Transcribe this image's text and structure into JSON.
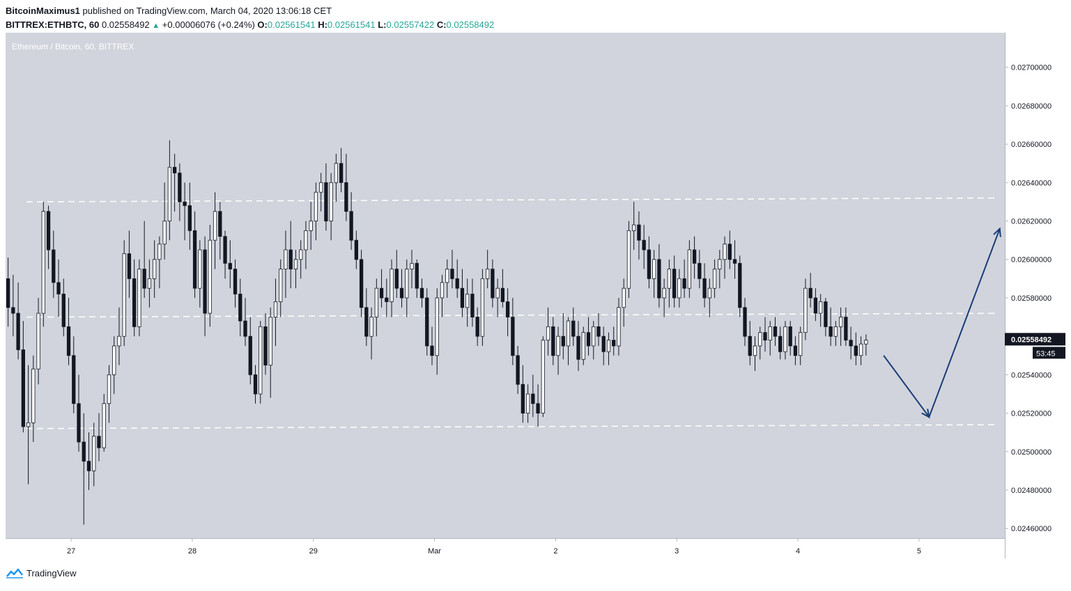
{
  "header": {
    "author": "BitcoinMaximus1",
    "published_text": " published on TradingView.com, March 04, 2020 13:06:18 CET",
    "symbol": "BITTREX:ETHBTC, 60",
    "last_price": "0.02558492",
    "change": "+0.00006076 (+0.24%)",
    "o_label": "O:",
    "o_value": "0.02561541",
    "h_label": "H:",
    "h_value": "0.02561541",
    "l_label": "L:",
    "l_value": "0.02557422",
    "c_label": "C:",
    "c_value": "0.02558492"
  },
  "footer": {
    "brand": "TradingView"
  },
  "colors": {
    "chart_bg": "#d1d4dc",
    "up_body": "#ffffff",
    "down_body": "#131722",
    "wick": "#131722",
    "level_line": "#ffffff",
    "arrow": "#1a3c78",
    "price_label_bg": "#131722",
    "price_label_text": "#ffffff"
  },
  "chart_data": {
    "type": "candlestick",
    "title": "Ethereum / Bitcoin, 60, BITTREX",
    "ylim": [
      0.02455,
      0.02718
    ],
    "y_ticks": [
      "0.02460000",
      "0.02480000",
      "0.02500000",
      "0.02520000",
      "0.02540000",
      "0.02560000",
      "0.02580000",
      "0.02600000",
      "0.02620000",
      "0.02640000",
      "0.02660000",
      "0.02680000",
      "0.02700000"
    ],
    "x_ticks": [
      "27",
      "28",
      "29",
      "Mar",
      "2",
      "3",
      "4",
      "5"
    ],
    "x_tick_hours": [
      13,
      37,
      61,
      85,
      109,
      133,
      157,
      181
    ],
    "x_range_hours": [
      0,
      198
    ],
    "current_price": "0.02558492",
    "countdown": "53:45",
    "ohlc_hourly": [
      [
        0.0259,
        0.02601,
        0.02565,
        0.02575
      ],
      [
        0.02575,
        0.02592,
        0.0256,
        0.02572
      ],
      [
        0.02572,
        0.02588,
        0.02548,
        0.02553
      ],
      [
        0.02553,
        0.02568,
        0.0251,
        0.02513
      ],
      [
        0.02513,
        0.02545,
        0.02483,
        0.02515
      ],
      [
        0.02515,
        0.0255,
        0.02505,
        0.02543
      ],
      [
        0.02543,
        0.0258,
        0.02535,
        0.02572
      ],
      [
        0.02572,
        0.0263,
        0.02565,
        0.02625
      ],
      [
        0.02625,
        0.02628,
        0.02595,
        0.02605
      ],
      [
        0.02605,
        0.02615,
        0.0258,
        0.02588
      ],
      [
        0.02588,
        0.026,
        0.0257,
        0.02582
      ],
      [
        0.02582,
        0.0259,
        0.0256,
        0.02565
      ],
      [
        0.02565,
        0.0258,
        0.02545,
        0.0255
      ],
      [
        0.0255,
        0.0256,
        0.0252,
        0.02525
      ],
      [
        0.02525,
        0.0254,
        0.025,
        0.02505
      ],
      [
        0.02505,
        0.0252,
        0.02462,
        0.02495
      ],
      [
        0.02495,
        0.0251,
        0.0248,
        0.0249
      ],
      [
        0.0249,
        0.02515,
        0.02482,
        0.02508
      ],
      [
        0.02508,
        0.0252,
        0.02495,
        0.02502
      ],
      [
        0.02502,
        0.0253,
        0.025,
        0.02525
      ],
      [
        0.02525,
        0.02545,
        0.02515,
        0.0254
      ],
      [
        0.0254,
        0.0256,
        0.0253,
        0.02555
      ],
      [
        0.02555,
        0.02575,
        0.02545,
        0.0256
      ],
      [
        0.0256,
        0.0261,
        0.02555,
        0.02603
      ],
      [
        0.02603,
        0.02615,
        0.0258,
        0.0259
      ],
      [
        0.0259,
        0.026,
        0.0256,
        0.02565
      ],
      [
        0.02565,
        0.026,
        0.0256,
        0.02595
      ],
      [
        0.02595,
        0.0262,
        0.0258,
        0.02585
      ],
      [
        0.02585,
        0.026,
        0.02575,
        0.0259
      ],
      [
        0.0259,
        0.0261,
        0.0258,
        0.026
      ],
      [
        0.026,
        0.02612,
        0.02585,
        0.02608
      ],
      [
        0.02608,
        0.0264,
        0.026,
        0.0262
      ],
      [
        0.0262,
        0.02662,
        0.0261,
        0.02648
      ],
      [
        0.02648,
        0.02655,
        0.02625,
        0.02645
      ],
      [
        0.02645,
        0.0265,
        0.0262,
        0.0263
      ],
      [
        0.0263,
        0.0264,
        0.0261,
        0.02628
      ],
      [
        0.02628,
        0.0264,
        0.02605,
        0.02615
      ],
      [
        0.02615,
        0.02625,
        0.0258,
        0.02585
      ],
      [
        0.02585,
        0.0261,
        0.02575,
        0.02605
      ],
      [
        0.02605,
        0.02612,
        0.0256,
        0.02572
      ],
      [
        0.02572,
        0.02618,
        0.02565,
        0.0261
      ],
      [
        0.0261,
        0.02635,
        0.02595,
        0.02625
      ],
      [
        0.02625,
        0.0263,
        0.026,
        0.02612
      ],
      [
        0.02612,
        0.02615,
        0.0259,
        0.02598
      ],
      [
        0.02598,
        0.0261,
        0.02585,
        0.02595
      ],
      [
        0.02595,
        0.026,
        0.02575,
        0.02582
      ],
      [
        0.02582,
        0.0259,
        0.0256,
        0.02568
      ],
      [
        0.02568,
        0.0258,
        0.02555,
        0.0256
      ],
      [
        0.0256,
        0.0257,
        0.02535,
        0.0254
      ],
      [
        0.0254,
        0.02545,
        0.02525,
        0.0253
      ],
      [
        0.0253,
        0.02568,
        0.02525,
        0.02565
      ],
      [
        0.02565,
        0.02572,
        0.0254,
        0.02545
      ],
      [
        0.02545,
        0.02575,
        0.02528,
        0.0257
      ],
      [
        0.0257,
        0.0259,
        0.02555,
        0.02578
      ],
      [
        0.02578,
        0.026,
        0.0257,
        0.02595
      ],
      [
        0.02595,
        0.02615,
        0.0258,
        0.02605
      ],
      [
        0.02605,
        0.0262,
        0.02585,
        0.02595
      ],
      [
        0.02595,
        0.02605,
        0.02585,
        0.026
      ],
      [
        0.026,
        0.0261,
        0.0259,
        0.02605
      ],
      [
        0.02605,
        0.0262,
        0.02595,
        0.02615
      ],
      [
        0.02615,
        0.0263,
        0.02605,
        0.0262
      ],
      [
        0.0262,
        0.0264,
        0.0261,
        0.02635
      ],
      [
        0.02635,
        0.02645,
        0.02625,
        0.0264
      ],
      [
        0.0264,
        0.0265,
        0.02615,
        0.0262
      ],
      [
        0.0262,
        0.02645,
        0.0261,
        0.0264
      ],
      [
        0.0264,
        0.02655,
        0.0263,
        0.0265
      ],
      [
        0.0265,
        0.02658,
        0.02635,
        0.0264
      ],
      [
        0.0264,
        0.02655,
        0.0262,
        0.02625
      ],
      [
        0.02625,
        0.02635,
        0.02605,
        0.0261
      ],
      [
        0.0261,
        0.02615,
        0.02595,
        0.026
      ],
      [
        0.026,
        0.02605,
        0.0257,
        0.02575
      ],
      [
        0.02575,
        0.02585,
        0.02555,
        0.0256
      ],
      [
        0.0256,
        0.02575,
        0.02548,
        0.0257
      ],
      [
        0.0257,
        0.0259,
        0.0256,
        0.02585
      ],
      [
        0.02585,
        0.02595,
        0.02575,
        0.0258
      ],
      [
        0.0258,
        0.0259,
        0.0257,
        0.02578
      ],
      [
        0.02578,
        0.026,
        0.0257,
        0.02595
      ],
      [
        0.02595,
        0.02605,
        0.0258,
        0.02585
      ],
      [
        0.02585,
        0.02595,
        0.02575,
        0.0258
      ],
      [
        0.0258,
        0.026,
        0.0257,
        0.02595
      ],
      [
        0.02595,
        0.02605,
        0.02585,
        0.02598
      ],
      [
        0.02598,
        0.026,
        0.0258,
        0.02585
      ],
      [
        0.02585,
        0.0259,
        0.02575,
        0.0258
      ],
      [
        0.0258,
        0.02585,
        0.0255,
        0.02555
      ],
      [
        0.02555,
        0.02565,
        0.02545,
        0.0255
      ],
      [
        0.0255,
        0.02585,
        0.0254,
        0.0258
      ],
      [
        0.0258,
        0.02592,
        0.0257,
        0.02588
      ],
      [
        0.02588,
        0.026,
        0.0258,
        0.02595
      ],
      [
        0.02595,
        0.02605,
        0.02585,
        0.0259
      ],
      [
        0.0259,
        0.026,
        0.0258,
        0.02585
      ],
      [
        0.02585,
        0.02595,
        0.0257,
        0.02575
      ],
      [
        0.02575,
        0.0259,
        0.02565,
        0.02582
      ],
      [
        0.02582,
        0.0259,
        0.02565,
        0.0257
      ],
      [
        0.0257,
        0.02575,
        0.02555,
        0.0256
      ],
      [
        0.0256,
        0.02595,
        0.02555,
        0.0259
      ],
      [
        0.0259,
        0.02605,
        0.02585,
        0.02595
      ],
      [
        0.02595,
        0.026,
        0.02575,
        0.0258
      ],
      [
        0.0258,
        0.0259,
        0.0257,
        0.02585
      ],
      [
        0.02585,
        0.02595,
        0.02575,
        0.02578
      ],
      [
        0.02578,
        0.02585,
        0.0256,
        0.0257
      ],
      [
        0.0257,
        0.0258,
        0.02545,
        0.0255
      ],
      [
        0.0255,
        0.02555,
        0.0253,
        0.02535
      ],
      [
        0.02535,
        0.02545,
        0.02515,
        0.0252
      ],
      [
        0.0252,
        0.02535,
        0.02515,
        0.0253
      ],
      [
        0.0253,
        0.0254,
        0.02518,
        0.02525
      ],
      [
        0.02525,
        0.02535,
        0.02513,
        0.0252
      ],
      [
        0.0252,
        0.0256,
        0.02518,
        0.02558
      ],
      [
        0.02558,
        0.02575,
        0.0255,
        0.02565
      ],
      [
        0.02565,
        0.0257,
        0.02545,
        0.0255
      ],
      [
        0.0255,
        0.02565,
        0.0254,
        0.0256
      ],
      [
        0.0256,
        0.02572,
        0.02548,
        0.02555
      ],
      [
        0.02555,
        0.0257,
        0.02545,
        0.02568
      ],
      [
        0.02568,
        0.02575,
        0.02555,
        0.0256
      ],
      [
        0.0256,
        0.02568,
        0.02542,
        0.02548
      ],
      [
        0.02548,
        0.02565,
        0.02545,
        0.02562
      ],
      [
        0.02562,
        0.0257,
        0.0255,
        0.02555
      ],
      [
        0.02555,
        0.02568,
        0.02548,
        0.02565
      ],
      [
        0.02565,
        0.02572,
        0.02555,
        0.0256
      ],
      [
        0.0256,
        0.02565,
        0.02545,
        0.02552
      ],
      [
        0.02552,
        0.02562,
        0.02545,
        0.02558
      ],
      [
        0.02558,
        0.02565,
        0.0255,
        0.02555
      ],
      [
        0.02555,
        0.0258,
        0.0255,
        0.02575
      ],
      [
        0.02575,
        0.0259,
        0.02565,
        0.02585
      ],
      [
        0.02585,
        0.0262,
        0.0258,
        0.02615
      ],
      [
        0.02615,
        0.0263,
        0.02605,
        0.02618
      ],
      [
        0.02618,
        0.02625,
        0.026,
        0.0261
      ],
      [
        0.0261,
        0.02618,
        0.02595,
        0.02605
      ],
      [
        0.02605,
        0.02612,
        0.02585,
        0.0259
      ],
      [
        0.0259,
        0.02605,
        0.0258,
        0.026
      ],
      [
        0.026,
        0.02608,
        0.02575,
        0.0258
      ],
      [
        0.0258,
        0.0259,
        0.0257,
        0.02585
      ],
      [
        0.02585,
        0.026,
        0.02575,
        0.02595
      ],
      [
        0.02595,
        0.02602,
        0.02575,
        0.0258
      ],
      [
        0.0258,
        0.02595,
        0.02575,
        0.0259
      ],
      [
        0.0259,
        0.026,
        0.0258,
        0.02585
      ],
      [
        0.02585,
        0.0261,
        0.0258,
        0.02605
      ],
      [
        0.02605,
        0.02612,
        0.0259,
        0.02598
      ],
      [
        0.02598,
        0.02605,
        0.02585,
        0.0259
      ],
      [
        0.0259,
        0.02598,
        0.02575,
        0.0258
      ],
      [
        0.0258,
        0.0259,
        0.0257,
        0.02585
      ],
      [
        0.02585,
        0.026,
        0.0258,
        0.02595
      ],
      [
        0.02595,
        0.02605,
        0.02585,
        0.026
      ],
      [
        0.026,
        0.02612,
        0.0259,
        0.02608
      ],
      [
        0.02608,
        0.02615,
        0.02595,
        0.026
      ],
      [
        0.026,
        0.0261,
        0.0259,
        0.02598
      ],
      [
        0.02598,
        0.02602,
        0.0257,
        0.02575
      ],
      [
        0.02575,
        0.0258,
        0.02555,
        0.0256
      ],
      [
        0.0256,
        0.02568,
        0.02545,
        0.0255
      ],
      [
        0.0255,
        0.0256,
        0.02542,
        0.02555
      ],
      [
        0.02555,
        0.02565,
        0.02548,
        0.02562
      ],
      [
        0.02562,
        0.0257,
        0.02552,
        0.02558
      ],
      [
        0.02558,
        0.02568,
        0.0255,
        0.02565
      ],
      [
        0.02565,
        0.0257,
        0.02555,
        0.0256
      ],
      [
        0.0256,
        0.02565,
        0.02548,
        0.02552
      ],
      [
        0.02552,
        0.02568,
        0.02548,
        0.02565
      ],
      [
        0.02565,
        0.02568,
        0.0255,
        0.02555
      ],
      [
        0.02555,
        0.0256,
        0.02545,
        0.0255
      ],
      [
        0.0255,
        0.02565,
        0.02545,
        0.02562
      ],
      [
        0.02562,
        0.0259,
        0.02558,
        0.02585
      ],
      [
        0.02585,
        0.02593,
        0.02575,
        0.0258
      ],
      [
        0.0258,
        0.02585,
        0.02568,
        0.02572
      ],
      [
        0.02572,
        0.02582,
        0.02565,
        0.02578
      ],
      [
        0.02578,
        0.0258,
        0.0256,
        0.02565
      ],
      [
        0.02565,
        0.02575,
        0.02555,
        0.0256
      ],
      [
        0.0256,
        0.02568,
        0.02555,
        0.02565
      ],
      [
        0.02565,
        0.02575,
        0.02555,
        0.0257
      ],
      [
        0.0257,
        0.02575,
        0.02555,
        0.02558
      ],
      [
        0.02558,
        0.02565,
        0.02548,
        0.02555
      ],
      [
        0.02555,
        0.02562,
        0.02545,
        0.0255
      ],
      [
        0.0255,
        0.0256,
        0.02545,
        0.02556
      ],
      [
        0.02556,
        0.02561,
        0.0255,
        0.02558
      ]
    ],
    "levels": [
      {
        "y_start": 0.0263,
        "y_end": 0.02632
      },
      {
        "y_start": 0.0257,
        "y_end": 0.02572
      },
      {
        "y_start": 0.02512,
        "y_end": 0.02514
      }
    ],
    "projection_path": [
      {
        "t": 174,
        "price": 0.0255
      },
      {
        "t": 183,
        "price": 0.02518
      },
      {
        "t": 197,
        "price": 0.02616
      }
    ]
  }
}
